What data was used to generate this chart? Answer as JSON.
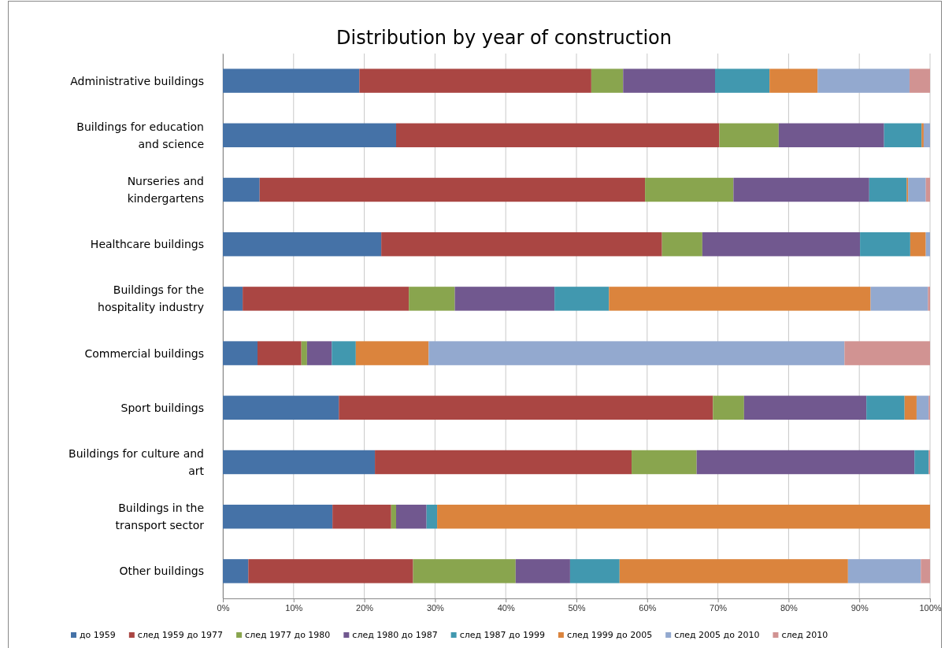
{
  "chart_data": {
    "type": "bar",
    "orientation": "horizontal",
    "stacked": true,
    "title": "Distribution by year of construction",
    "categories": [
      "Administrative buildings",
      "Buildings for education and science",
      "Nurseries and kindergartens",
      "Healthcare buildings",
      "Buildings for the hospitality industry",
      "Commercial buildings",
      "Sport buildings",
      "Buildings for culture and art",
      "Buildings in the transport sector",
      "Other buildings"
    ],
    "series": [
      {
        "name": "до 1959",
        "color": "#4572a7",
        "values": [
          19.3,
          24.5,
          5.2,
          22.4,
          2.8,
          4.9,
          16.4,
          21.5,
          15.5,
          3.6
        ]
      },
      {
        "name": "след 1959 до 1977",
        "color": "#aa4643",
        "values": [
          32.8,
          45.7,
          54.5,
          39.7,
          23.5,
          6.2,
          52.9,
          36.3,
          8.3,
          23.3
        ]
      },
      {
        "name": "след 1977 до 1980",
        "color": "#89a54e",
        "values": [
          4.5,
          8.4,
          12.5,
          5.7,
          6.5,
          0.8,
          4.4,
          9.2,
          0.7,
          14.5
        ]
      },
      {
        "name": "след 1980 до 1987",
        "color": "#71588f",
        "values": [
          13.0,
          14.9,
          19.2,
          22.3,
          14.1,
          3.5,
          17.3,
          30.8,
          4.3,
          7.7
        ]
      },
      {
        "name": "след 1987 до 1999",
        "color": "#4198af",
        "values": [
          7.7,
          5.3,
          5.3,
          7.1,
          7.7,
          3.4,
          5.4,
          2.0,
          1.5,
          7.0
        ]
      },
      {
        "name": "след 1999 до 2005",
        "color": "#db843d",
        "values": [
          6.8,
          0.3,
          0.2,
          2.2,
          37.0,
          10.3,
          1.7,
          0,
          69.7,
          32.3
        ]
      },
      {
        "name": "след 2005 до 2010",
        "color": "#93a9cf",
        "values": [
          13.0,
          0.9,
          2.5,
          0.6,
          8.1,
          58.8,
          1.7,
          0,
          0,
          10.3
        ]
      },
      {
        "name": "след 2010",
        "color": "#d19392",
        "values": [
          2.9,
          0,
          0.6,
          0,
          0.3,
          12.1,
          0.2,
          0.2,
          0,
          1.3
        ]
      }
    ],
    "xlim": [
      0,
      100
    ],
    "xticks": [
      {
        "value": 0,
        "label": "0%"
      },
      {
        "value": 10,
        "label": "10%"
      },
      {
        "value": 20,
        "label": "20%"
      },
      {
        "value": 30,
        "label": "30%"
      },
      {
        "value": 40,
        "label": "40%"
      },
      {
        "value": 50,
        "label": "50%"
      },
      {
        "value": 60,
        "label": "60%"
      },
      {
        "value": 70,
        "label": "70%"
      },
      {
        "value": 80,
        "label": "80%"
      },
      {
        "value": 90,
        "label": "90%"
      },
      {
        "value": 100,
        "label": "100%"
      }
    ],
    "grid": "x",
    "legend": "bottom"
  }
}
